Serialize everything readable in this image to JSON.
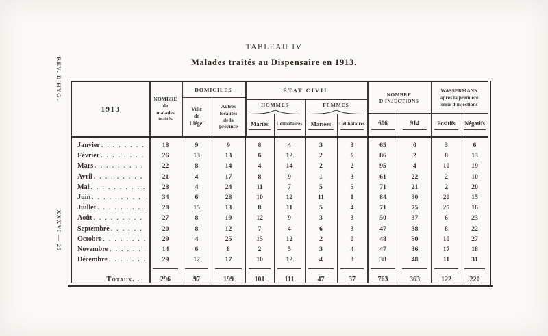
{
  "margins": {
    "top_vertical_text": "REV. D'HYG.",
    "bottom_vertical_text": "XXXVI — 25"
  },
  "title": "TABLEAU IV",
  "subtitle": "Malades traités au Dispensaire en 1913.",
  "table": {
    "header": {
      "year": "1913",
      "nombre": "NOMBRE\nde\nmalades\ntraités",
      "domiciles": {
        "label": "DOMICILES",
        "ville": "Ville\nde\nLiége.",
        "autres": "Autres\nlocalités\nde la\nprovince"
      },
      "etat_civil": {
        "label": "ÉTAT CIVIL",
        "hommes": "HOMMES",
        "femmes": "FEMMES",
        "hommes_maries": "Mariés",
        "hommes_celibataires": "Célibataires",
        "femmes_mariees": "Mariées",
        "femmes_celibataires": "Célibataires"
      },
      "injections": {
        "label": "NOMBRE D'INJECTIONS",
        "col_606": "606",
        "col_914": "914"
      },
      "wassermann": {
        "label": "WASSERMANN\naprès la première\nsérie d'injections",
        "positifs": "Positifs",
        "negatifs": "Négatifs"
      }
    },
    "rows": [
      {
        "month": "Janvier",
        "values": [
          18,
          9,
          9,
          8,
          4,
          3,
          3,
          65,
          0,
          3,
          6
        ]
      },
      {
        "month": "Février",
        "values": [
          26,
          13,
          13,
          6,
          12,
          2,
          6,
          86,
          2,
          8,
          13
        ]
      },
      {
        "month": "Mars",
        "values": [
          22,
          8,
          14,
          4,
          14,
          2,
          2,
          95,
          4,
          10,
          19
        ]
      },
      {
        "month": "Avril",
        "values": [
          21,
          4,
          17,
          8,
          9,
          1,
          3,
          61,
          22,
          2,
          10
        ]
      },
      {
        "month": "Mai",
        "values": [
          28,
          4,
          24,
          11,
          7,
          5,
          5,
          71,
          21,
          2,
          20
        ]
      },
      {
        "month": "Juin",
        "values": [
          34,
          6,
          28,
          10,
          12,
          11,
          1,
          84,
          30,
          20,
          15
        ]
      },
      {
        "month": "Juillet",
        "values": [
          28,
          15,
          13,
          8,
          11,
          5,
          4,
          71,
          75,
          25,
          16
        ]
      },
      {
        "month": "Août",
        "values": [
          27,
          8,
          19,
          12,
          9,
          3,
          3,
          50,
          37,
          6,
          23
        ]
      },
      {
        "month": "Septembre",
        "values": [
          20,
          8,
          12,
          7,
          4,
          6,
          3,
          47,
          38,
          8,
          22
        ]
      },
      {
        "month": "Octobre",
        "values": [
          29,
          4,
          25,
          15,
          12,
          2,
          0,
          48,
          50,
          10,
          27
        ]
      },
      {
        "month": "Novembre",
        "values": [
          14,
          6,
          8,
          2,
          5,
          3,
          4,
          47,
          36,
          17,
          18
        ]
      },
      {
        "month": "Décembre",
        "values": [
          29,
          12,
          17,
          10,
          12,
          4,
          3,
          38,
          48,
          11,
          31
        ]
      }
    ],
    "totals": {
      "label": "Totaux. .",
      "values": [
        296,
        97,
        199,
        101,
        111,
        47,
        37,
        763,
        363,
        122,
        220
      ]
    }
  }
}
